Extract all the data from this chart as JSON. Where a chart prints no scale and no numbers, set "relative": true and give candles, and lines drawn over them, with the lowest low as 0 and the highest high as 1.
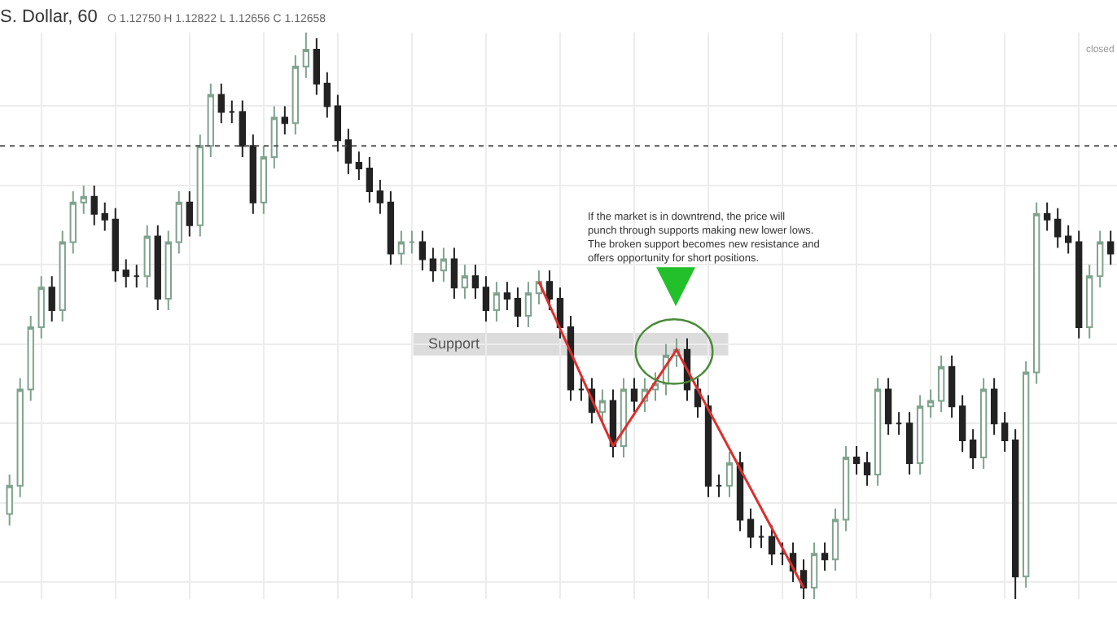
{
  "chart_data": {
    "type": "candlestick",
    "title": "S. Dollar, 60",
    "subtitle": "O 1.12750 H 1.12822 L 1.12656 C 1.12658",
    "relative": true,
    "grid": true,
    "categories": [
      null,
      null,
      null,
      null,
      null,
      null,
      null,
      null,
      null,
      null,
      null,
      null,
      null,
      null,
      null,
      null,
      null,
      null,
      null,
      null,
      null,
      null,
      null,
      null,
      null,
      null,
      null,
      null,
      null,
      null,
      null,
      null,
      null,
      null,
      null,
      null,
      null,
      null,
      null,
      null,
      null,
      null,
      null,
      null,
      null,
      null,
      null,
      null,
      null,
      null,
      null,
      null,
      null,
      null,
      null,
      null,
      null,
      null,
      null,
      null,
      null,
      null,
      null,
      null,
      null,
      null,
      null,
      null,
      null,
      null,
      null,
      null,
      null,
      null,
      null,
      null,
      null,
      null,
      null,
      null,
      null,
      null,
      null,
      null,
      null,
      null,
      null,
      null,
      null,
      null,
      null,
      null,
      null,
      null,
      null,
      null,
      null,
      null,
      null,
      null,
      null,
      null,
      null,
      null,
      null
    ],
    "ohlc": [
      [
        0.15,
        0.22,
        0.13,
        0.2
      ],
      [
        0.2,
        0.39,
        0.18,
        0.37
      ],
      [
        0.37,
        0.5,
        0.35,
        0.48
      ],
      [
        0.48,
        0.57,
        0.46,
        0.55
      ],
      [
        0.55,
        0.57,
        0.49,
        0.51
      ],
      [
        0.51,
        0.65,
        0.49,
        0.63
      ],
      [
        0.63,
        0.72,
        0.61,
        0.7
      ],
      [
        0.7,
        0.73,
        0.68,
        0.71
      ],
      [
        0.71,
        0.73,
        0.66,
        0.68
      ],
      [
        0.68,
        0.7,
        0.65,
        0.67
      ],
      [
        0.67,
        0.69,
        0.56,
        0.58
      ],
      [
        0.58,
        0.6,
        0.55,
        0.57
      ],
      [
        0.57,
        0.59,
        0.55,
        0.57
      ],
      [
        0.57,
        0.66,
        0.55,
        0.64
      ],
      [
        0.64,
        0.66,
        0.51,
        0.53
      ],
      [
        0.53,
        0.65,
        0.51,
        0.63
      ],
      [
        0.63,
        0.72,
        0.61,
        0.7
      ],
      [
        0.7,
        0.72,
        0.64,
        0.66
      ],
      [
        0.66,
        0.82,
        0.64,
        0.8
      ],
      [
        0.8,
        0.91,
        0.78,
        0.89
      ],
      [
        0.89,
        0.91,
        0.84,
        0.86
      ],
      [
        0.86,
        0.88,
        0.84,
        0.86
      ],
      [
        0.86,
        0.88,
        0.78,
        0.8
      ],
      [
        0.8,
        0.82,
        0.68,
        0.7
      ],
      [
        0.7,
        0.8,
        0.68,
        0.78
      ],
      [
        0.78,
        0.87,
        0.76,
        0.85
      ],
      [
        0.85,
        0.87,
        0.82,
        0.84
      ],
      [
        0.84,
        0.96,
        0.82,
        0.94
      ],
      [
        0.94,
        1.0,
        0.92,
        0.97
      ],
      [
        0.97,
        0.99,
        0.89,
        0.91
      ],
      [
        0.91,
        0.93,
        0.85,
        0.87
      ],
      [
        0.87,
        0.89,
        0.79,
        0.81
      ],
      [
        0.81,
        0.83,
        0.75,
        0.77
      ],
      [
        0.77,
        0.79,
        0.74,
        0.76
      ],
      [
        0.76,
        0.78,
        0.7,
        0.72
      ],
      [
        0.72,
        0.74,
        0.68,
        0.7
      ],
      [
        0.7,
        0.72,
        0.59,
        0.61
      ],
      [
        0.61,
        0.65,
        0.59,
        0.63
      ],
      [
        0.63,
        0.65,
        0.61,
        0.63
      ],
      [
        0.63,
        0.65,
        0.58,
        0.6
      ],
      [
        0.6,
        0.62,
        0.56,
        0.58
      ],
      [
        0.58,
        0.62,
        0.56,
        0.6
      ],
      [
        0.6,
        0.62,
        0.53,
        0.55
      ],
      [
        0.55,
        0.59,
        0.53,
        0.57
      ],
      [
        0.57,
        0.59,
        0.53,
        0.55
      ],
      [
        0.55,
        0.57,
        0.49,
        0.51
      ],
      [
        0.51,
        0.56,
        0.49,
        0.54
      ],
      [
        0.54,
        0.56,
        0.51,
        0.53
      ],
      [
        0.53,
        0.55,
        0.48,
        0.5
      ],
      [
        0.5,
        0.56,
        0.48,
        0.54
      ],
      [
        0.54,
        0.58,
        0.52,
        0.56
      ],
      [
        0.56,
        0.58,
        0.51,
        0.53
      ],
      [
        0.53,
        0.55,
        0.46,
        0.48
      ],
      [
        0.48,
        0.5,
        0.35,
        0.37
      ],
      [
        0.37,
        0.39,
        0.35,
        0.37
      ],
      [
        0.37,
        0.39,
        0.31,
        0.33
      ],
      [
        0.33,
        0.37,
        0.31,
        0.35
      ],
      [
        0.35,
        0.37,
        0.25,
        0.27
      ],
      [
        0.27,
        0.39,
        0.25,
        0.37
      ],
      [
        0.37,
        0.39,
        0.33,
        0.35
      ],
      [
        0.35,
        0.39,
        0.33,
        0.37
      ],
      [
        0.37,
        0.4,
        0.35,
        0.38
      ],
      [
        0.38,
        0.45,
        0.36,
        0.43
      ],
      [
        0.43,
        0.46,
        0.41,
        0.44
      ],
      [
        0.44,
        0.46,
        0.35,
        0.37
      ],
      [
        0.37,
        0.39,
        0.32,
        0.34
      ],
      [
        0.34,
        0.36,
        0.18,
        0.2
      ],
      [
        0.2,
        0.22,
        0.18,
        0.2
      ],
      [
        0.2,
        0.26,
        0.18,
        0.24
      ],
      [
        0.24,
        0.26,
        0.12,
        0.14
      ],
      [
        0.14,
        0.16,
        0.09,
        0.11
      ],
      [
        0.11,
        0.13,
        0.09,
        0.11
      ],
      [
        0.11,
        0.13,
        0.06,
        0.08
      ],
      [
        0.08,
        0.1,
        0.06,
        0.08
      ],
      [
        0.08,
        0.1,
        0.03,
        0.05
      ],
      [
        0.05,
        0.07,
        0.0,
        0.02
      ],
      [
        0.02,
        0.1,
        0.0,
        0.08
      ],
      [
        0.08,
        0.1,
        0.05,
        0.07
      ],
      [
        0.07,
        0.16,
        0.05,
        0.14
      ],
      [
        0.14,
        0.27,
        0.12,
        0.25
      ],
      [
        0.25,
        0.27,
        0.22,
        0.24
      ],
      [
        0.24,
        0.26,
        0.2,
        0.22
      ],
      [
        0.22,
        0.39,
        0.2,
        0.37
      ],
      [
        0.37,
        0.39,
        0.29,
        0.31
      ],
      [
        0.31,
        0.33,
        0.29,
        0.31
      ],
      [
        0.31,
        0.33,
        0.22,
        0.24
      ],
      [
        0.24,
        0.36,
        0.22,
        0.34
      ],
      [
        0.34,
        0.37,
        0.32,
        0.35
      ],
      [
        0.35,
        0.43,
        0.33,
        0.41
      ],
      [
        0.41,
        0.43,
        0.32,
        0.34
      ],
      [
        0.34,
        0.36,
        0.26,
        0.28
      ],
      [
        0.28,
        0.3,
        0.23,
        0.25
      ],
      [
        0.25,
        0.39,
        0.23,
        0.37
      ],
      [
        0.37,
        0.39,
        0.29,
        0.31
      ],
      [
        0.31,
        0.33,
        0.26,
        0.28
      ],
      [
        0.28,
        0.3,
        0.0,
        0.04
      ],
      [
        0.04,
        0.42,
        0.02,
        0.4
      ],
      [
        0.4,
        0.7,
        0.38,
        0.68
      ],
      [
        0.68,
        0.7,
        0.65,
        0.67
      ],
      [
        0.67,
        0.69,
        0.62,
        0.64
      ],
      [
        0.64,
        0.66,
        0.61,
        0.63
      ],
      [
        0.63,
        0.65,
        0.46,
        0.48
      ],
      [
        0.48,
        0.59,
        0.46,
        0.57
      ],
      [
        0.57,
        0.65,
        0.55,
        0.63
      ],
      [
        0.63,
        0.65,
        0.59,
        0.61
      ]
    ],
    "series": [
      {
        "type": "line",
        "values": [
          null,
          null,
          null,
          null,
          null,
          null,
          null,
          null,
          null,
          null,
          null,
          null,
          null,
          null,
          null,
          null,
          null,
          null,
          null,
          null,
          null,
          null,
          null,
          null,
          null,
          null,
          null,
          null,
          null,
          null,
          null,
          null,
          null,
          null,
          null,
          null,
          null,
          null,
          null,
          null,
          null,
          null,
          null,
          null,
          null,
          null,
          null,
          null,
          null,
          null,
          0.56,
          null,
          null,
          null,
          null,
          null,
          null,
          0.27,
          null,
          null,
          null,
          null,
          null,
          0.44,
          null,
          null,
          null,
          null,
          null,
          null,
          null,
          null,
          null,
          null,
          null,
          0.02,
          null,
          null,
          null,
          null,
          null,
          null,
          null,
          null,
          null,
          null,
          null,
          null,
          null,
          null,
          null,
          null,
          null,
          null,
          null,
          null,
          null,
          null,
          null,
          null,
          null,
          null,
          null,
          null,
          null
        ],
        "color": "#d9312f"
      }
    ],
    "ref_lines": [
      {
        "axis": "y",
        "value": 0.8,
        "color": "#555555",
        "line_style": "dotted"
      }
    ],
    "bands": [
      {
        "axis": "y",
        "from": 0.43,
        "to": 0.47,
        "label": "Support",
        "color": "#dcdcdc"
      }
    ],
    "annotations": [
      "If the market is in downtrend, the price will punch through supports making new lower lows. The broken support becomes new resistance and offers opportunity for short positions.",
      "closed"
    ]
  }
}
